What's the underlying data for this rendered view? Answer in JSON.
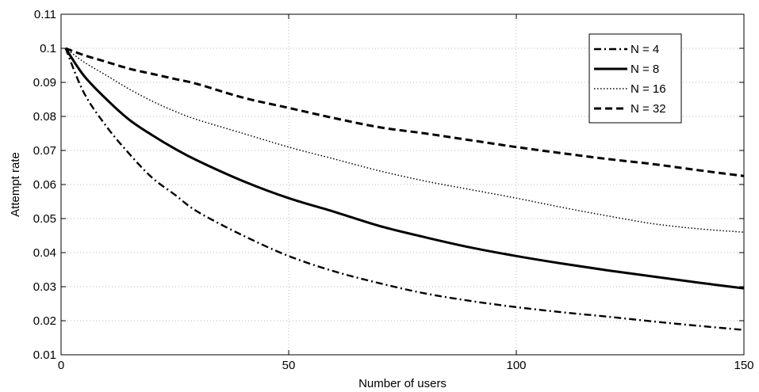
{
  "chart_data": {
    "type": "line",
    "title": "",
    "xlabel": "Number of users",
    "ylabel": "Attempt rate",
    "xlim": [
      0,
      150
    ],
    "ylim": [
      0.01,
      0.11
    ],
    "xticks": [
      0,
      50,
      100,
      150
    ],
    "xtick_labels": [
      "0",
      "50",
      "100",
      "150"
    ],
    "yticks": [
      0.01,
      0.02,
      0.03,
      0.04,
      0.05,
      0.06,
      0.07,
      0.08,
      0.09,
      0.1,
      0.11
    ],
    "ytick_labels": [
      "0.01",
      "0.02",
      "0.03",
      "0.04",
      "0.05",
      "0.06",
      "0.07",
      "0.08",
      "0.09",
      "0.1",
      "0.11"
    ],
    "grid": true,
    "legend_position": "top-right",
    "series": [
      {
        "name": "N = 4",
        "style": "dashdot",
        "x": [
          1,
          5,
          10,
          15,
          20,
          25,
          30,
          40,
          50,
          60,
          70,
          80,
          90,
          100,
          110,
          120,
          130,
          140,
          150
        ],
        "y": [
          0.1,
          0.087,
          0.077,
          0.069,
          0.062,
          0.057,
          0.052,
          0.045,
          0.039,
          0.0345,
          0.031,
          0.028,
          0.0258,
          0.024,
          0.0225,
          0.0212,
          0.0198,
          0.0185,
          0.0173
        ]
      },
      {
        "name": "N = 8",
        "style": "solid",
        "x": [
          1,
          5,
          10,
          15,
          20,
          25,
          30,
          40,
          50,
          60,
          70,
          80,
          90,
          100,
          110,
          120,
          130,
          140,
          150
        ],
        "y": [
          0.1,
          0.092,
          0.085,
          0.079,
          0.0745,
          0.0705,
          0.067,
          0.061,
          0.056,
          0.052,
          0.0478,
          0.0445,
          0.0415,
          0.039,
          0.0368,
          0.0348,
          0.033,
          0.0312,
          0.0295
        ]
      },
      {
        "name": "N = 16",
        "style": "dotted",
        "x": [
          1,
          5,
          10,
          15,
          20,
          25,
          30,
          40,
          50,
          60,
          70,
          80,
          90,
          100,
          110,
          120,
          130,
          140,
          150
        ],
        "y": [
          0.1,
          0.096,
          0.092,
          0.088,
          0.0845,
          0.0815,
          0.079,
          0.075,
          0.071,
          0.0675,
          0.064,
          0.061,
          0.0585,
          0.056,
          0.0533,
          0.0508,
          0.0485,
          0.047,
          0.046
        ]
      },
      {
        "name": "N = 32",
        "style": "dashed",
        "x": [
          1,
          5,
          10,
          15,
          20,
          25,
          30,
          40,
          50,
          60,
          70,
          80,
          90,
          100,
          110,
          120,
          130,
          140,
          150
        ],
        "y": [
          0.1,
          0.098,
          0.096,
          0.094,
          0.0925,
          0.091,
          0.0895,
          0.0855,
          0.0825,
          0.0795,
          0.0768,
          0.075,
          0.073,
          0.071,
          0.0692,
          0.0675,
          0.066,
          0.0642,
          0.0625
        ]
      }
    ]
  }
}
